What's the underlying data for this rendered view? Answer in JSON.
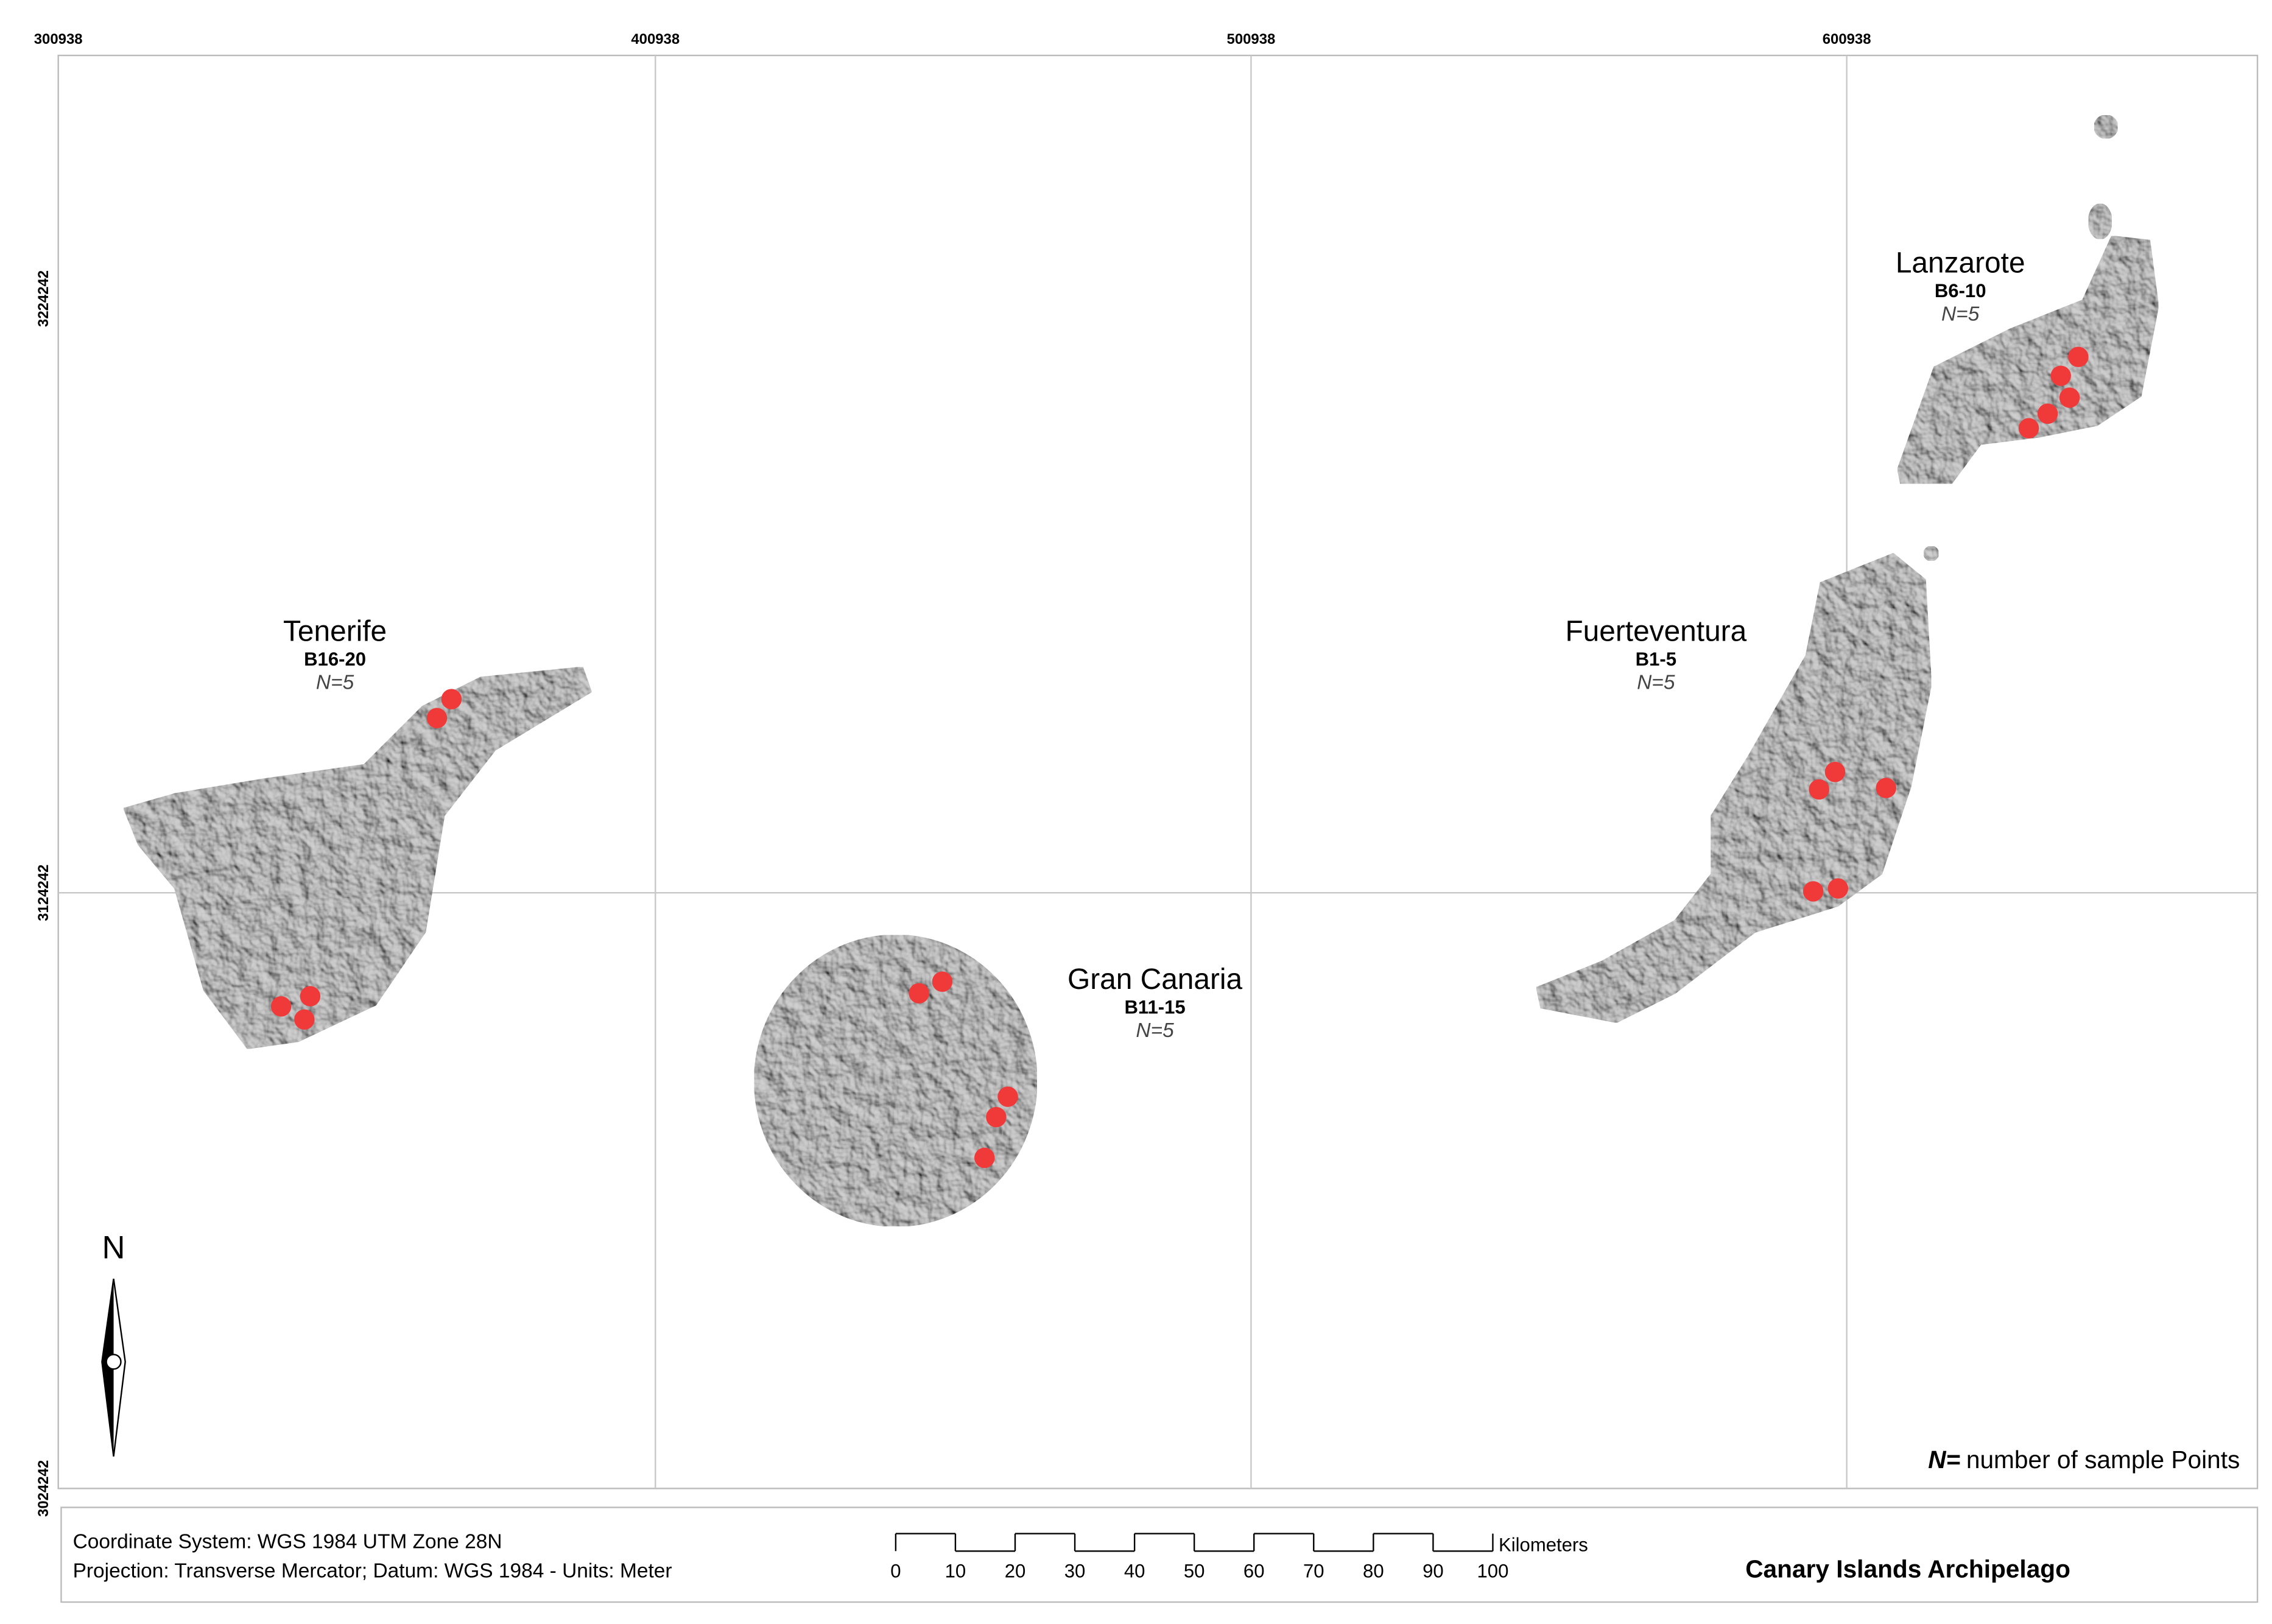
{
  "grid": {
    "x_labels": [
      "300938",
      "400938",
      "500938",
      "600938"
    ],
    "y_labels": [
      "3224242",
      "3124242",
      "3024242"
    ]
  },
  "islands": [
    {
      "name": "Tenerife",
      "samples": "B16-20",
      "n": "N=5"
    },
    {
      "name": "Gran Canaria",
      "samples": "B11-15",
      "n": "N=5"
    },
    {
      "name": "Fuerteventura",
      "samples": "B1-5",
      "n": "N=5"
    },
    {
      "name": "Lanzarote",
      "samples": "B6-10",
      "n": "N=5"
    }
  ],
  "north": "N",
  "legend": {
    "n_label": "N=",
    "n_text": "number of sample Points"
  },
  "footer": {
    "coordinate_system": "Coordinate System: WGS 1984 UTM Zone 28N",
    "projection": "Projection: Transverse Mercator; Datum: WGS 1984 - Units: Meter",
    "scale_ticks": [
      0,
      10,
      20,
      30,
      40,
      50,
      60,
      70,
      80,
      90,
      100
    ],
    "scale_unit": "Kilometers",
    "title": "Canary Islands Archipelago"
  }
}
